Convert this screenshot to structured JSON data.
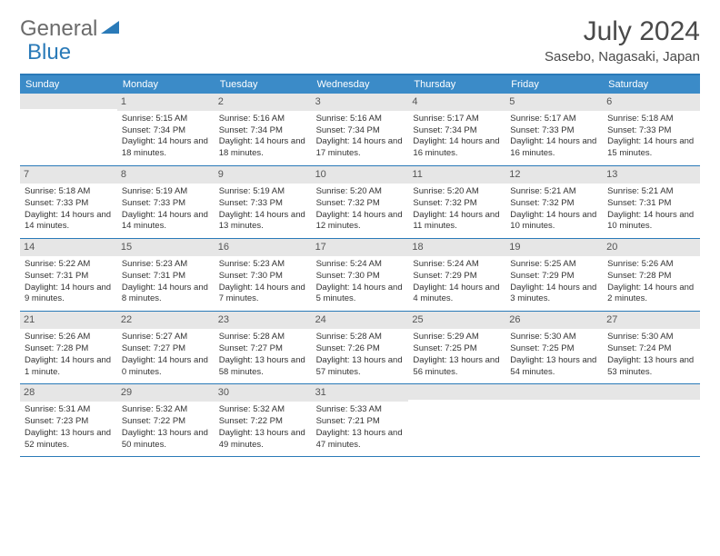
{
  "brand": {
    "part1": "General",
    "part2": "Blue"
  },
  "title": "July 2024",
  "location": "Sasebo, Nagasaki, Japan",
  "colors": {
    "header_bg": "#3b8bc8",
    "border": "#2a7ab8",
    "daynum_bg": "#e6e6e6",
    "text": "#333333"
  },
  "dow": [
    "Sunday",
    "Monday",
    "Tuesday",
    "Wednesday",
    "Thursday",
    "Friday",
    "Saturday"
  ],
  "weeks": [
    [
      {
        "n": "",
        "sr": "",
        "ss": "",
        "dl": ""
      },
      {
        "n": "1",
        "sr": "Sunrise: 5:15 AM",
        "ss": "Sunset: 7:34 PM",
        "dl": "Daylight: 14 hours and 18 minutes."
      },
      {
        "n": "2",
        "sr": "Sunrise: 5:16 AM",
        "ss": "Sunset: 7:34 PM",
        "dl": "Daylight: 14 hours and 18 minutes."
      },
      {
        "n": "3",
        "sr": "Sunrise: 5:16 AM",
        "ss": "Sunset: 7:34 PM",
        "dl": "Daylight: 14 hours and 17 minutes."
      },
      {
        "n": "4",
        "sr": "Sunrise: 5:17 AM",
        "ss": "Sunset: 7:34 PM",
        "dl": "Daylight: 14 hours and 16 minutes."
      },
      {
        "n": "5",
        "sr": "Sunrise: 5:17 AM",
        "ss": "Sunset: 7:33 PM",
        "dl": "Daylight: 14 hours and 16 minutes."
      },
      {
        "n": "6",
        "sr": "Sunrise: 5:18 AM",
        "ss": "Sunset: 7:33 PM",
        "dl": "Daylight: 14 hours and 15 minutes."
      }
    ],
    [
      {
        "n": "7",
        "sr": "Sunrise: 5:18 AM",
        "ss": "Sunset: 7:33 PM",
        "dl": "Daylight: 14 hours and 14 minutes."
      },
      {
        "n": "8",
        "sr": "Sunrise: 5:19 AM",
        "ss": "Sunset: 7:33 PM",
        "dl": "Daylight: 14 hours and 14 minutes."
      },
      {
        "n": "9",
        "sr": "Sunrise: 5:19 AM",
        "ss": "Sunset: 7:33 PM",
        "dl": "Daylight: 14 hours and 13 minutes."
      },
      {
        "n": "10",
        "sr": "Sunrise: 5:20 AM",
        "ss": "Sunset: 7:32 PM",
        "dl": "Daylight: 14 hours and 12 minutes."
      },
      {
        "n": "11",
        "sr": "Sunrise: 5:20 AM",
        "ss": "Sunset: 7:32 PM",
        "dl": "Daylight: 14 hours and 11 minutes."
      },
      {
        "n": "12",
        "sr": "Sunrise: 5:21 AM",
        "ss": "Sunset: 7:32 PM",
        "dl": "Daylight: 14 hours and 10 minutes."
      },
      {
        "n": "13",
        "sr": "Sunrise: 5:21 AM",
        "ss": "Sunset: 7:31 PM",
        "dl": "Daylight: 14 hours and 10 minutes."
      }
    ],
    [
      {
        "n": "14",
        "sr": "Sunrise: 5:22 AM",
        "ss": "Sunset: 7:31 PM",
        "dl": "Daylight: 14 hours and 9 minutes."
      },
      {
        "n": "15",
        "sr": "Sunrise: 5:23 AM",
        "ss": "Sunset: 7:31 PM",
        "dl": "Daylight: 14 hours and 8 minutes."
      },
      {
        "n": "16",
        "sr": "Sunrise: 5:23 AM",
        "ss": "Sunset: 7:30 PM",
        "dl": "Daylight: 14 hours and 7 minutes."
      },
      {
        "n": "17",
        "sr": "Sunrise: 5:24 AM",
        "ss": "Sunset: 7:30 PM",
        "dl": "Daylight: 14 hours and 5 minutes."
      },
      {
        "n": "18",
        "sr": "Sunrise: 5:24 AM",
        "ss": "Sunset: 7:29 PM",
        "dl": "Daylight: 14 hours and 4 minutes."
      },
      {
        "n": "19",
        "sr": "Sunrise: 5:25 AM",
        "ss": "Sunset: 7:29 PM",
        "dl": "Daylight: 14 hours and 3 minutes."
      },
      {
        "n": "20",
        "sr": "Sunrise: 5:26 AM",
        "ss": "Sunset: 7:28 PM",
        "dl": "Daylight: 14 hours and 2 minutes."
      }
    ],
    [
      {
        "n": "21",
        "sr": "Sunrise: 5:26 AM",
        "ss": "Sunset: 7:28 PM",
        "dl": "Daylight: 14 hours and 1 minute."
      },
      {
        "n": "22",
        "sr": "Sunrise: 5:27 AM",
        "ss": "Sunset: 7:27 PM",
        "dl": "Daylight: 14 hours and 0 minutes."
      },
      {
        "n": "23",
        "sr": "Sunrise: 5:28 AM",
        "ss": "Sunset: 7:27 PM",
        "dl": "Daylight: 13 hours and 58 minutes."
      },
      {
        "n": "24",
        "sr": "Sunrise: 5:28 AM",
        "ss": "Sunset: 7:26 PM",
        "dl": "Daylight: 13 hours and 57 minutes."
      },
      {
        "n": "25",
        "sr": "Sunrise: 5:29 AM",
        "ss": "Sunset: 7:25 PM",
        "dl": "Daylight: 13 hours and 56 minutes."
      },
      {
        "n": "26",
        "sr": "Sunrise: 5:30 AM",
        "ss": "Sunset: 7:25 PM",
        "dl": "Daylight: 13 hours and 54 minutes."
      },
      {
        "n": "27",
        "sr": "Sunrise: 5:30 AM",
        "ss": "Sunset: 7:24 PM",
        "dl": "Daylight: 13 hours and 53 minutes."
      }
    ],
    [
      {
        "n": "28",
        "sr": "Sunrise: 5:31 AM",
        "ss": "Sunset: 7:23 PM",
        "dl": "Daylight: 13 hours and 52 minutes."
      },
      {
        "n": "29",
        "sr": "Sunrise: 5:32 AM",
        "ss": "Sunset: 7:22 PM",
        "dl": "Daylight: 13 hours and 50 minutes."
      },
      {
        "n": "30",
        "sr": "Sunrise: 5:32 AM",
        "ss": "Sunset: 7:22 PM",
        "dl": "Daylight: 13 hours and 49 minutes."
      },
      {
        "n": "31",
        "sr": "Sunrise: 5:33 AM",
        "ss": "Sunset: 7:21 PM",
        "dl": "Daylight: 13 hours and 47 minutes."
      },
      {
        "n": "",
        "sr": "",
        "ss": "",
        "dl": ""
      },
      {
        "n": "",
        "sr": "",
        "ss": "",
        "dl": ""
      },
      {
        "n": "",
        "sr": "",
        "ss": "",
        "dl": ""
      }
    ]
  ]
}
